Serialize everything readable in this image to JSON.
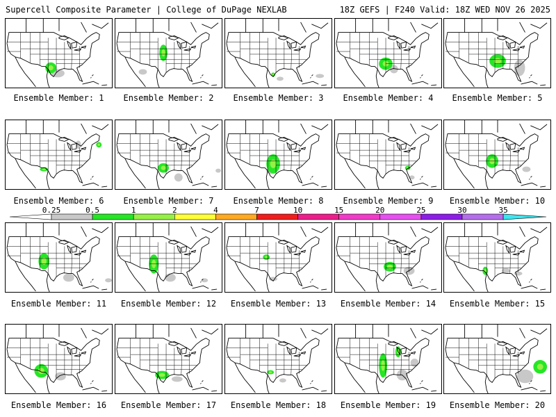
{
  "header": {
    "left_title": "Supercell Composite Parameter | College of DuPage NEXLAB",
    "right_title": "18Z GEFS | F240 Valid: 18Z WED NOV 26 2025"
  },
  "panel_label_prefix": "Ensemble Member: ",
  "members": [
    1,
    2,
    3,
    4,
    5,
    6,
    7,
    8,
    9,
    10,
    11,
    12,
    13,
    14,
    15,
    16,
    17,
    18,
    19,
    20
  ],
  "legend": {
    "levels": [
      "0.25",
      "0.5",
      "1",
      "2",
      "4",
      "7",
      "10",
      "15",
      "20",
      "25",
      "30",
      "35"
    ],
    "colors": [
      "#c8c8c8",
      "#26e626",
      "#96f046",
      "#ffff37",
      "#ffaa23",
      "#f01e1e",
      "#eb1e8c",
      "#f03cc8",
      "#e650f0",
      "#8c1ee6",
      "#b46eeb",
      "#3ce6f0"
    ]
  }
}
